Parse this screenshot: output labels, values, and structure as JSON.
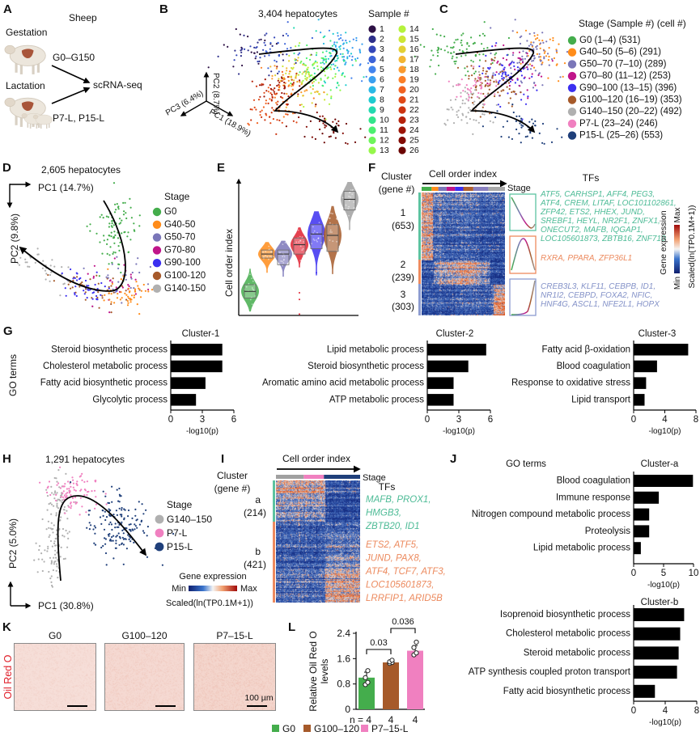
{
  "panel_labels": {
    "A": "A",
    "B": "B",
    "C": "C",
    "D": "D",
    "E": "E",
    "F": "F",
    "G": "G",
    "H": "H",
    "I": "I",
    "J": "J",
    "K": "K",
    "L": "L"
  },
  "A": {
    "species": "Sheep",
    "gestation": "Gestation",
    "gestation_range": "G0–G150",
    "lactation": "Lactation",
    "lactation_range": "P7-L, P15-L",
    "method": "scRNA-seq"
  },
  "K": {
    "stain": "Oil Red O",
    "images": [
      "G0",
      "G100–120",
      "P7–15-L"
    ],
    "scale_bar": "100 µm"
  },
  "chart_data": [
    {
      "id": "B",
      "type": "scatter",
      "title": "3,404 hepatocytes",
      "axes": {
        "pc1": "PC1 (18.9%)",
        "pc2": "PC2 (8.7%)",
        "pc3": "PC3 (6.4%)"
      },
      "legend_title": "Sample #",
      "legend": [
        {
          "label": "1",
          "color": "#2d1045"
        },
        {
          "label": "2",
          "color": "#2e2f8a"
        },
        {
          "label": "3",
          "color": "#3446b8"
        },
        {
          "label": "4",
          "color": "#3c63d8"
        },
        {
          "label": "5",
          "color": "#4284ee"
        },
        {
          "label": "6",
          "color": "#3aa0f0"
        },
        {
          "label": "7",
          "color": "#29b9e6"
        },
        {
          "label": "8",
          "color": "#1ecbd0"
        },
        {
          "label": "9",
          "color": "#23d9b0"
        },
        {
          "label": "10",
          "color": "#33e58c"
        },
        {
          "label": "11",
          "color": "#4cf070"
        },
        {
          "label": "12",
          "color": "#6ef55a"
        },
        {
          "label": "13",
          "color": "#95f74a"
        },
        {
          "label": "14",
          "color": "#b5f23c"
        },
        {
          "label": "15",
          "color": "#cde636"
        },
        {
          "label": "16",
          "color": "#e2d034"
        },
        {
          "label": "17",
          "color": "#f2b632"
        },
        {
          "label": "18",
          "color": "#fa9a2e"
        },
        {
          "label": "19",
          "color": "#fb7f27"
        },
        {
          "label": "20",
          "color": "#f16220"
        },
        {
          "label": "21",
          "color": "#e04a18"
        },
        {
          "label": "22",
          "color": "#cc3410"
        },
        {
          "label": "23",
          "color": "#b5230b"
        },
        {
          "label": "24",
          "color": "#9c1507"
        },
        {
          "label": "25",
          "color": "#830c05"
        },
        {
          "label": "26",
          "color": "#6b0503"
        }
      ]
    },
    {
      "id": "C",
      "type": "scatter",
      "legend_title": "Stage (Sample #) (cell #)",
      "legend": [
        {
          "label": "G0 (1–4) (531)",
          "samples": [
            1,
            4
          ],
          "cells": 531,
          "color": "#44ad4c"
        },
        {
          "label": "G40–50 (5–6) (291)",
          "samples": [
            5,
            6
          ],
          "cells": 291,
          "color": "#ff8c1a"
        },
        {
          "label": "G50–70 (7–10) (289)",
          "samples": [
            7,
            10
          ],
          "cells": 289,
          "color": "#7a76b8"
        },
        {
          "label": "G70–80 (11–12) (253)",
          "samples": [
            11,
            12
          ],
          "cells": 253,
          "color": "#c0158a"
        },
        {
          "label": "G90–100 (13–15) (396)",
          "samples": [
            13,
            15
          ],
          "cells": 396,
          "color": "#3b2ff0"
        },
        {
          "label": "G100–120 (16–19) (353)",
          "samples": [
            16,
            19
          ],
          "cells": 353,
          "color": "#a65a2a"
        },
        {
          "label": "G140–150 (20–22) (492)",
          "samples": [
            20,
            22
          ],
          "cells": 492,
          "color": "#b0b0b0"
        },
        {
          "label": "P7-L (23–24) (246)",
          "samples": [
            23,
            24
          ],
          "cells": 246,
          "color": "#f080c0"
        },
        {
          "label": "P15-L (25–26) (553)",
          "samples": [
            25,
            26
          ],
          "cells": 553,
          "color": "#1f3f7a"
        }
      ]
    },
    {
      "id": "D",
      "type": "scatter",
      "title": "2,605 hepatocytes",
      "xlabel": "PC1 (14.7%)",
      "ylabel": "PC2 (9.8%)",
      "legend_title": "Stage",
      "legend": [
        {
          "label": "G0",
          "color": "#44ad4c"
        },
        {
          "label": "G40-50",
          "color": "#ff8c1a"
        },
        {
          "label": "G50-70",
          "color": "#7a76b8"
        },
        {
          "label": "G70-80",
          "color": "#c0158a"
        },
        {
          "label": "G90-100",
          "color": "#3b2ff0"
        },
        {
          "label": "G100-120",
          "color": "#a65a2a"
        },
        {
          "label": "G140-150",
          "color": "#b0b0b0"
        }
      ]
    },
    {
      "id": "E",
      "type": "violin",
      "ylabel": "Cell order index",
      "categories": [
        "G0",
        "G40-50",
        "G50-70",
        "G70-80",
        "G90-100",
        "G100-120",
        "G140-150"
      ],
      "colors": [
        "#44ad4c",
        "#ff8c1a",
        "#7a76b8",
        "#e02030",
        "#3b2ff0",
        "#a65a2a",
        "#a0a0a0"
      ],
      "relative_min": [
        0.03,
        0.32,
        0.29,
        0.36,
        0.3,
        0.31,
        0.64
      ],
      "relative_q1": [
        0.13,
        0.43,
        0.38,
        0.46,
        0.5,
        0.48,
        0.79
      ],
      "relative_median": [
        0.18,
        0.46,
        0.46,
        0.53,
        0.61,
        0.6,
        0.87
      ],
      "relative_q3": [
        0.23,
        0.49,
        0.49,
        0.58,
        0.68,
        0.68,
        0.93
      ],
      "relative_max": [
        0.35,
        0.55,
        0.56,
        0.66,
        0.78,
        0.82,
        1.0
      ]
    },
    {
      "id": "F",
      "type": "heatmap",
      "xlabel": "Cell order index",
      "stage_label": "Stage",
      "row_header": [
        "Cluster",
        "(gene #)"
      ],
      "tf_header": "TFs",
      "clusters": [
        {
          "name": "1",
          "genes": "(653)",
          "n": 653,
          "color": "#5cc3a0",
          "text_color": "#4dbb96",
          "trend": "decreasing",
          "tf_lines": [
            "ATF5, CARHSP1, AFF4, PEG3,",
            "ATF4, CREM, LITAF, LOC101102861,",
            "ZFP42, ETS2, HHEX, JUND,",
            "SREBF1, HEYL, NR2F1, ZNFX1,",
            "ONECUT2, MAFB, IQGAP1,",
            "LOC105601873, ZBTB16, ZNF710"
          ]
        },
        {
          "name": "2",
          "genes": "(239)",
          "n": 239,
          "color": "#ee8a5e",
          "text_color": "#ec8a5e",
          "trend": "transient",
          "tf_lines": [
            "RXRA, PPARA, ZFP36L1"
          ]
        },
        {
          "name": "3",
          "genes": "(303)",
          "n": 303,
          "color": "#8c9bd0",
          "text_color": "#8492c8",
          "trend": "increasing",
          "tf_lines": [
            "CREB3L3, KLF11, CEBPB, ID1,",
            "NR1I2, CEBPD, FOXA2, NFIC,",
            "HNF4G, ASCL1, NFE2L1, HOPX"
          ]
        }
      ],
      "colorbar": {
        "title": "Gene expression",
        "min": "Min",
        "max": "Max",
        "scale": "Scaled(ln(TP0.1M+1))"
      }
    },
    {
      "id": "G1",
      "type": "bar",
      "orientation": "horizontal",
      "title": "Cluster-1",
      "ylabel": "GO terms",
      "categories": [
        "Steroid biosynthetic process",
        "Cholesterol metabolic process",
        "Fatty acid biosynthetic process",
        "Glycolytic process"
      ],
      "values": [
        4.9,
        4.9,
        3.3,
        2.4
      ],
      "xlim": [
        0,
        6
      ],
      "xticks": [
        "0",
        "3",
        "6"
      ],
      "xlabel": "-log10(p)"
    },
    {
      "id": "G2",
      "type": "bar",
      "orientation": "horizontal",
      "title": "Cluster-2",
      "categories": [
        "Lipid metabolic process",
        "Steroid biosynthetic process",
        "Aromatic amino acid metabolic process",
        "ATP metabolic process"
      ],
      "values": [
        5.6,
        3.9,
        2.5,
        2.5
      ],
      "xlim": [
        0,
        6
      ],
      "xticks": [
        "0",
        "3",
        "6"
      ],
      "xlabel": "-log10(p)"
    },
    {
      "id": "G3",
      "type": "bar",
      "orientation": "horizontal",
      "title": "Cluster-3",
      "categories": [
        "Fatty acid β-oxidation",
        "Blood coagulation",
        "Response to oxidative stress",
        "Lipid transport"
      ],
      "values": [
        7.0,
        3.0,
        1.6,
        1.4
      ],
      "xlim": [
        0,
        8
      ],
      "xticks": [
        "0",
        "4",
        "8"
      ],
      "xlabel": "-log10(p)"
    },
    {
      "id": "H",
      "type": "scatter",
      "title": "1,291 hepatocytes",
      "xlabel": "PC1 (30.8%)",
      "ylabel": "PC2 (5.0%)",
      "legend_title": "Stage",
      "legend": [
        {
          "label": "G140–150",
          "color": "#b0b0b0"
        },
        {
          "label": "P7-L",
          "color": "#f080c0"
        },
        {
          "label": "P15-L",
          "color": "#1f3f7a"
        }
      ]
    },
    {
      "id": "I",
      "type": "heatmap",
      "xlabel": "Cell order index",
      "stage_label": "Stage",
      "row_header": [
        "Cluster",
        "(gene #)"
      ],
      "tf_header": "TFs",
      "clusters": [
        {
          "name": "a",
          "genes": "(214)",
          "n": 214,
          "color": "#5cc3a0",
          "text_color": "#4dbb96",
          "tf_lines": [
            "MAFB, PROX1,",
            "HMGB3,",
            "ZBTB20, ID1"
          ]
        },
        {
          "name": "b",
          "genes": "(421)",
          "n": 421,
          "color": "#ee8a5e",
          "text_color": "#ec8a5e",
          "tf_lines": [
            "ETS2, ATF5,",
            "JUND, PAX8,",
            "ATF4, TCF7, ATF3,",
            "LOC105601873,",
            "LRRFIP1, ARID5B"
          ]
        }
      ],
      "colorbar": {
        "title": "Gene expression",
        "min": "Min",
        "max": "Max",
        "scale": "Scaled(ln(TP0.1M+1))"
      }
    },
    {
      "id": "Ja",
      "type": "bar",
      "orientation": "horizontal",
      "title": "Cluster-a",
      "ylabel": "GO terms",
      "categories": [
        "Blood coagulation",
        "Immune response",
        "Nitrogen compound metabolic process",
        "Proteolysis",
        "Lipid metabolic process"
      ],
      "values": [
        9.9,
        4.2,
        2.6,
        2.6,
        1.2
      ],
      "xlim": [
        0,
        10
      ],
      "xticks": [
        "0",
        "5",
        "10"
      ],
      "xlabel": "-log10(p)"
    },
    {
      "id": "Jb",
      "type": "bar",
      "orientation": "horizontal",
      "title": "Cluster-b",
      "categories": [
        "Isoprenoid biosynthetic process",
        "Cholesterol metabolic process",
        "Steroid metabolic process",
        "ATP synthesis coupled proton transport",
        "Fatty acid biosynthetic process"
      ],
      "values": [
        6.4,
        5.9,
        5.7,
        5.5,
        2.7
      ],
      "xlim": [
        0,
        8
      ],
      "xticks": [
        "0",
        "4",
        "8"
      ],
      "xlabel": "-log10(p)"
    },
    {
      "id": "L",
      "type": "bar",
      "orientation": "vertical",
      "ylabel": [
        "Relative Oil Red O",
        "levels"
      ],
      "categories": [
        "G0",
        "G100–120",
        "P7–15-L"
      ],
      "values": [
        1.0,
        1.48,
        1.85
      ],
      "points": [
        [
          0.78,
          0.85,
          1.0,
          1.22
        ],
        [
          1.45,
          1.48,
          1.5,
          1.55
        ],
        [
          1.72,
          1.78,
          1.95,
          2.12
        ]
      ],
      "colors": [
        "#44ad4c",
        "#a65a2a",
        "#f080c0"
      ],
      "n_labels": [
        "n = 4",
        "4",
        "4"
      ],
      "ylim": [
        0,
        2.4
      ],
      "yticks": [
        "0",
        "0.8",
        "1.6",
        "2.4"
      ],
      "significance": [
        {
          "pair": [
            0,
            1
          ],
          "p": "0.03"
        },
        {
          "pair": [
            1,
            2
          ],
          "p": "0.036"
        }
      ]
    }
  ]
}
